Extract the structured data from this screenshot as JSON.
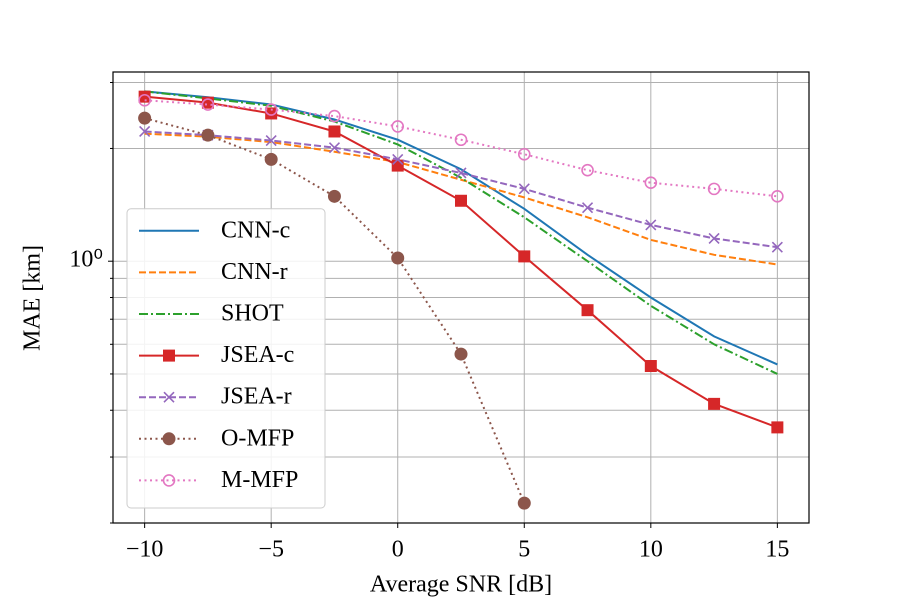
{
  "chart_data": {
    "type": "line",
    "x": [
      -10,
      -7.5,
      -5,
      -2.5,
      0,
      2.5,
      5,
      7.5,
      10,
      12.5,
      15
    ],
    "xlabel": "Average SNR [dB]",
    "ylabel": "MAE [km]",
    "xlim": [
      -11.25,
      16.25
    ],
    "xticks": [
      {
        "value": -10,
        "label": "−10"
      },
      {
        "value": -5,
        "label": "−5"
      },
      0,
      5,
      10,
      15
    ],
    "ylim": [
      0.2,
      3.2
    ],
    "yscale": "log",
    "yticks": [
      {
        "value": 1,
        "label": "10⁰"
      }
    ],
    "yminor_ticks": [
      0.2,
      0.3,
      0.4,
      0.5,
      0.6,
      0.7,
      0.8,
      0.9,
      2,
      3
    ],
    "grid": true,
    "legend": "lower left",
    "series": [
      {
        "name": "CNN-c",
        "color": "#1f77b4",
        "linestyle": "solid",
        "marker": "none",
        "values": [
          2.84,
          2.74,
          2.62,
          2.39,
          2.11,
          1.76,
          1.38,
          1.04,
          0.8,
          0.63,
          0.53
        ]
      },
      {
        "name": "CNN-r",
        "color": "#ff7f0e",
        "linestyle": "dashed",
        "marker": "none",
        "values": [
          2.19,
          2.15,
          2.08,
          1.96,
          1.84,
          1.65,
          1.48,
          1.31,
          1.14,
          1.04,
          0.98
        ]
      },
      {
        "name": "SHOT",
        "color": "#2ca02c",
        "linestyle": "dashdot",
        "marker": "none",
        "values": [
          2.84,
          2.72,
          2.6,
          2.36,
          2.05,
          1.67,
          1.31,
          1.0,
          0.76,
          0.6,
          0.5
        ]
      },
      {
        "name": "JSEA-c",
        "color": "#d62728",
        "linestyle": "solid",
        "marker": "square",
        "values": [
          2.75,
          2.65,
          2.48,
          2.22,
          1.8,
          1.45,
          1.03,
          0.74,
          0.525,
          0.416,
          0.36
        ]
      },
      {
        "name": "JSEA-r",
        "color": "#9467bd",
        "linestyle": "dashed",
        "marker": "x",
        "values": [
          2.22,
          2.17,
          2.1,
          2.01,
          1.87,
          1.72,
          1.56,
          1.39,
          1.25,
          1.15,
          1.09
        ]
      },
      {
        "name": "O-MFP",
        "color": "#8c564b",
        "linestyle": "dotted",
        "marker": "circle",
        "values": [
          2.41,
          2.17,
          1.87,
          1.49,
          1.02,
          0.565,
          0.226,
          null,
          null,
          null,
          null
        ]
      },
      {
        "name": "M-MFP",
        "color": "#e377c2",
        "linestyle": "dotted",
        "marker": "open-circle",
        "values": [
          2.69,
          2.62,
          2.54,
          2.44,
          2.29,
          2.11,
          1.93,
          1.75,
          1.62,
          1.56,
          1.49
        ]
      }
    ]
  }
}
